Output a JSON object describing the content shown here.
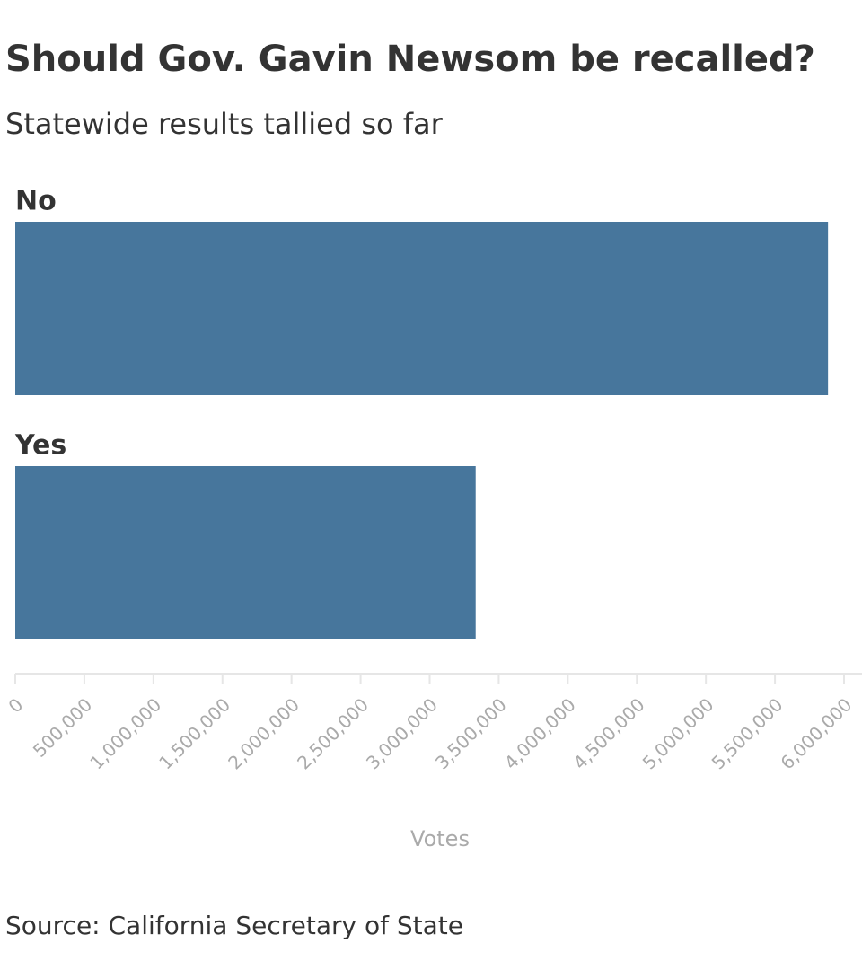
{
  "chart_data": {
    "type": "hbar",
    "title": "Should Gov. Gavin Newsom be recalled?",
    "subtitle": "Statewide results tallied so far",
    "categories": [
      "No",
      "Yes"
    ],
    "values": [
      5884000,
      3333000
    ],
    "color": "#47769c",
    "xlabel": "Votes",
    "xlim": [
      0,
      6000000
    ],
    "xticks": [
      0,
      {
        "value": 500000,
        "label": "500,000"
      },
      {
        "value": 1000000,
        "label": "1,000,000"
      },
      {
        "value": 1500000,
        "label": "1,500,000"
      },
      {
        "value": 2000000,
        "label": "2,000,000"
      },
      {
        "value": 2500000,
        "label": "2,500,000"
      },
      {
        "value": 3000000,
        "label": "3,000,000"
      },
      {
        "value": 3500000,
        "label": "3,500,000"
      },
      {
        "value": 4000000,
        "label": "4,000,000"
      },
      {
        "value": 4500000,
        "label": "4,500,000"
      },
      {
        "value": 5000000,
        "label": "5,000,000"
      },
      {
        "value": 5500000,
        "label": "5,500,000"
      },
      {
        "value": 6000000,
        "label": "6,000,000"
      }
    ],
    "source": "Source: California Secretary of State"
  }
}
